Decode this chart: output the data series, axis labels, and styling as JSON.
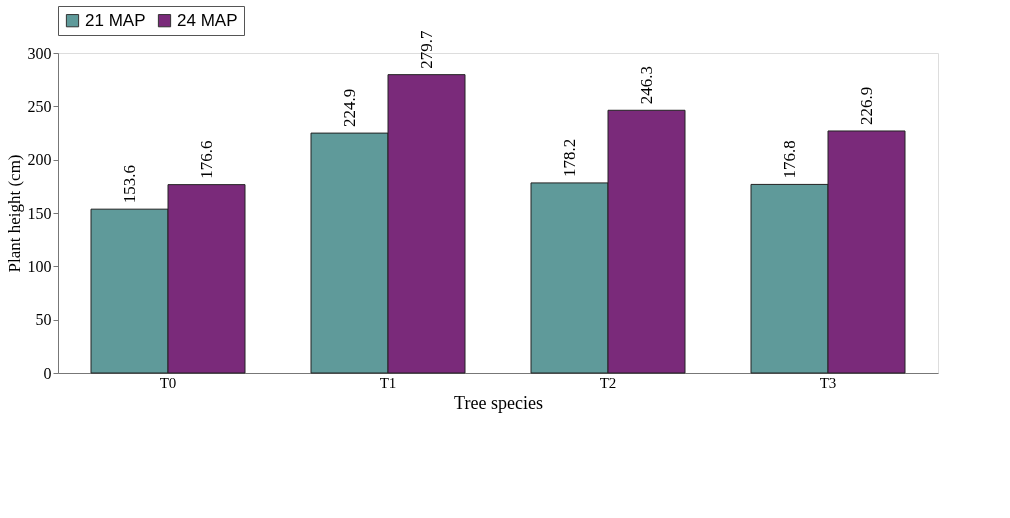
{
  "chart_data": {
    "type": "bar",
    "xlabel": "Tree species",
    "ylabel": "Plant height (cm)",
    "categories": [
      "T0",
      "T1",
      "T2",
      "T3"
    ],
    "series": [
      {
        "name": "21 MAP",
        "color": "#5f9a9a",
        "values": [
          153.6,
          224.9,
          178.2,
          176.8
        ]
      },
      {
        "name": "24 MAP",
        "color": "#7a2a7a",
        "values": [
          176.6,
          279.7,
          246.3,
          226.9
        ]
      }
    ],
    "ylim": [
      0,
      300
    ],
    "yticks": [
      0,
      50,
      100,
      150,
      200,
      250,
      300
    ],
    "data_labels": true,
    "grid": false,
    "legend": "top"
  }
}
